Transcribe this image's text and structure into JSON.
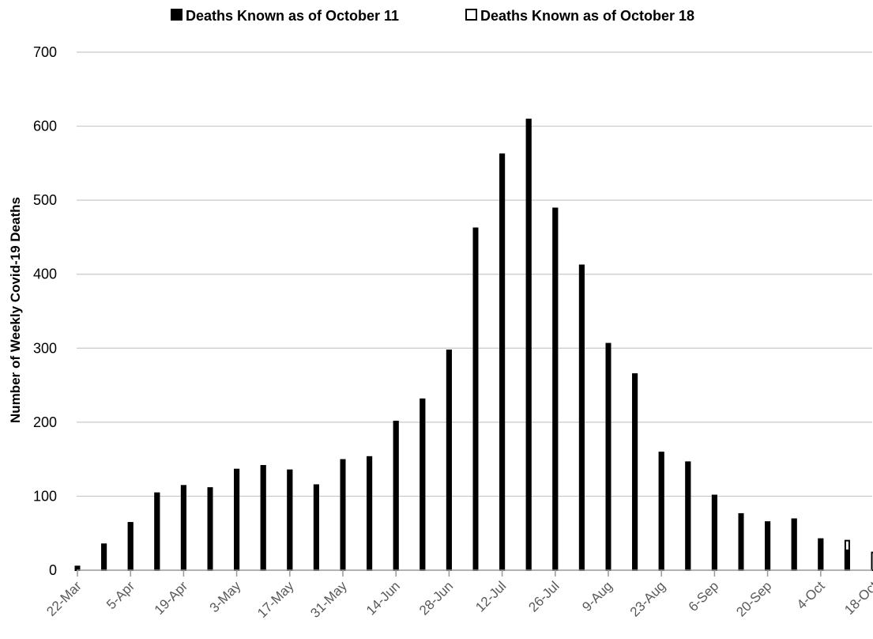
{
  "chart_data": {
    "type": "bar",
    "title": "",
    "xlabel": "",
    "ylabel": "Number of Weekly Covid-19 Deaths",
    "ylim": [
      0,
      700
    ],
    "yticks": [
      0,
      100,
      200,
      300,
      400,
      500,
      600,
      700
    ],
    "grid": true,
    "legend_position": "top",
    "categories": [
      "22-Mar",
      "29-Mar",
      "5-Apr",
      "12-Apr",
      "19-Apr",
      "26-Apr",
      "3-May",
      "10-May",
      "17-May",
      "24-May",
      "31-May",
      "7-Jun",
      "14-Jun",
      "21-Jun",
      "28-Jun",
      "5-Jul",
      "12-Jul",
      "19-Jul",
      "26-Jul",
      "2-Aug",
      "9-Aug",
      "16-Aug",
      "23-Aug",
      "30-Aug",
      "6-Sep",
      "13-Sep",
      "20-Sep",
      "27-Sep",
      "4-Oct",
      "11-Oct",
      "18-Oct"
    ],
    "tick_labels": [
      "22-Mar",
      "5-Apr",
      "19-Apr",
      "3-May",
      "17-May",
      "31-May",
      "14-Jun",
      "28-Jun",
      "12-Jul",
      "26-Jul",
      "9-Aug",
      "23-Aug",
      "6-Sep",
      "20-Sep",
      "4-Oct",
      "18-Oct"
    ],
    "series": [
      {
        "name": "Deaths Known as of October 11",
        "color": "#000000",
        "values": [
          6,
          36,
          65,
          105,
          115,
          112,
          137,
          142,
          136,
          116,
          150,
          154,
          202,
          232,
          298,
          463,
          563,
          610,
          490,
          413,
          307,
          266,
          160,
          147,
          102,
          77,
          66,
          70,
          43,
          28,
          0
        ]
      },
      {
        "name": "Deaths Known as of October 18",
        "color": "#ffffff",
        "values": [
          6,
          36,
          65,
          105,
          115,
          112,
          137,
          142,
          136,
          116,
          150,
          154,
          202,
          232,
          298,
          463,
          563,
          610,
          490,
          413,
          307,
          266,
          160,
          147,
          102,
          77,
          66,
          70,
          43,
          41,
          25
        ]
      }
    ]
  }
}
